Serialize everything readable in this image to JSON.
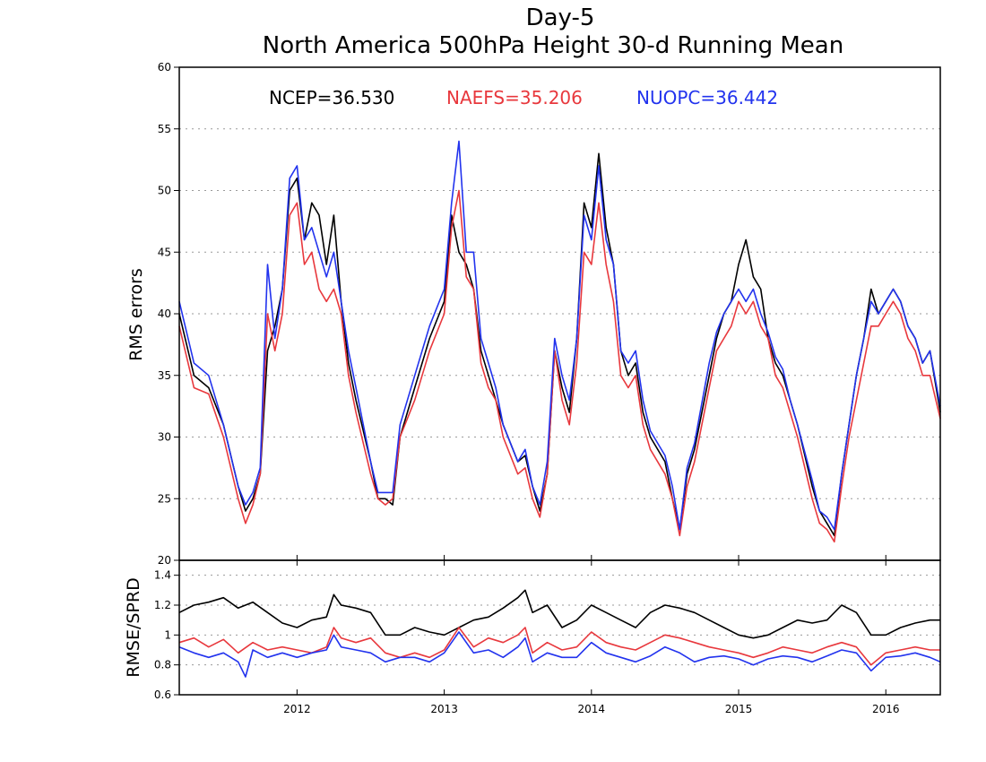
{
  "chart_data": [
    {
      "type": "line",
      "title": "Day-5",
      "subtitle": "North America 500hPa Height 30-d Running Mean",
      "ylabel": "RMS errors",
      "xlabel": "",
      "xlim": [
        2011.2,
        2016.37
      ],
      "ylim": [
        20,
        60
      ],
      "yticks": [
        20,
        25,
        30,
        35,
        40,
        45,
        50,
        55,
        60
      ],
      "ytick_labels": [
        "20",
        "25",
        "30",
        "35",
        "40",
        "45",
        "50",
        "55",
        "60"
      ],
      "grid": true,
      "legend_placement": "top",
      "series": [
        {
          "name": "NCEP",
          "label": "NCEP=36.530",
          "color": "#000000",
          "x": [
            2011.2,
            2011.3,
            2011.4,
            2011.5,
            2011.6,
            2011.65,
            2011.7,
            2011.75,
            2011.8,
            2011.85,
            2011.9,
            2011.95,
            2012.0,
            2012.05,
            2012.1,
            2012.15,
            2012.2,
            2012.25,
            2012.3,
            2012.35,
            2012.4,
            2012.5,
            2012.55,
            2012.6,
            2012.65,
            2012.7,
            2012.8,
            2012.9,
            2013.0,
            2013.05,
            2013.1,
            2013.15,
            2013.2,
            2013.25,
            2013.3,
            2013.35,
            2013.4,
            2013.5,
            2013.55,
            2013.6,
            2013.65,
            2013.7,
            2013.75,
            2013.8,
            2013.85,
            2013.9,
            2013.95,
            2014.0,
            2014.05,
            2014.1,
            2014.15,
            2014.2,
            2014.25,
            2014.3,
            2014.35,
            2014.4,
            2014.5,
            2014.55,
            2014.6,
            2014.65,
            2014.7,
            2014.8,
            2014.85,
            2014.9,
            2014.95,
            2015.0,
            2015.05,
            2015.1,
            2015.15,
            2015.2,
            2015.25,
            2015.3,
            2015.35,
            2015.4,
            2015.5,
            2015.55,
            2015.6,
            2015.65,
            2015.7,
            2015.75,
            2015.8,
            2015.85,
            2015.9,
            2015.95,
            2016.0,
            2016.05,
            2016.1,
            2016.15,
            2016.2,
            2016.25,
            2016.3,
            2016.37
          ],
          "y": [
            40,
            35,
            34,
            31,
            26,
            24,
            25,
            27,
            37,
            39,
            42,
            50,
            51,
            46,
            49,
            48,
            44,
            48,
            41,
            36,
            33,
            28,
            25,
            25,
            24.5,
            30,
            34,
            38,
            41,
            48,
            45,
            44,
            42,
            37,
            35,
            33,
            31,
            28,
            28.5,
            26,
            24,
            27,
            37,
            34,
            32,
            38,
            49,
            47,
            53,
            47,
            44,
            37,
            35,
            36,
            32,
            30,
            28,
            25,
            22.5,
            27,
            29,
            35,
            38,
            40,
            41,
            44,
            46,
            43,
            42,
            38,
            36,
            35,
            33,
            31,
            26,
            24,
            23,
            22,
            27,
            31,
            35,
            38,
            42,
            40,
            41,
            42,
            41,
            39,
            38,
            36,
            37,
            32
          ]
        },
        {
          "name": "NAEFS",
          "label": "NAEFS=35.206",
          "color": "#e8383d",
          "x": [
            2011.2,
            2011.3,
            2011.4,
            2011.5,
            2011.6,
            2011.65,
            2011.7,
            2011.75,
            2011.8,
            2011.85,
            2011.9,
            2011.95,
            2012.0,
            2012.05,
            2012.1,
            2012.15,
            2012.2,
            2012.25,
            2012.3,
            2012.35,
            2012.4,
            2012.5,
            2012.55,
            2012.6,
            2012.65,
            2012.7,
            2012.8,
            2012.9,
            2013.0,
            2013.05,
            2013.1,
            2013.15,
            2013.2,
            2013.25,
            2013.3,
            2013.35,
            2013.4,
            2013.5,
            2013.55,
            2013.6,
            2013.65,
            2013.7,
            2013.75,
            2013.8,
            2013.85,
            2013.9,
            2013.95,
            2014.0,
            2014.05,
            2014.1,
            2014.15,
            2014.2,
            2014.25,
            2014.3,
            2014.35,
            2014.4,
            2014.5,
            2014.55,
            2014.6,
            2014.65,
            2014.7,
            2014.8,
            2014.85,
            2014.9,
            2014.95,
            2015.0,
            2015.05,
            2015.1,
            2015.15,
            2015.2,
            2015.25,
            2015.3,
            2015.35,
            2015.4,
            2015.5,
            2015.55,
            2015.6,
            2015.65,
            2015.7,
            2015.75,
            2015.8,
            2015.85,
            2015.9,
            2015.95,
            2016.0,
            2016.05,
            2016.1,
            2016.15,
            2016.2,
            2016.25,
            2016.3,
            2016.37
          ],
          "y": [
            39,
            34,
            33.5,
            30,
            25,
            23,
            24.5,
            27,
            40,
            37,
            40,
            48,
            49,
            44,
            45,
            42,
            41,
            42,
            40,
            35,
            32,
            27,
            25,
            24.5,
            25,
            30,
            33,
            37,
            40,
            47,
            50,
            43,
            42,
            36,
            34,
            33,
            30,
            27,
            27.5,
            25,
            23.5,
            27,
            37,
            33,
            31,
            36,
            45,
            44,
            49,
            44,
            41,
            35,
            34,
            35,
            31,
            29,
            27,
            25,
            22,
            26,
            28,
            34,
            37,
            38,
            39,
            41,
            40,
            41,
            39,
            38,
            35,
            34,
            32,
            30,
            25,
            23,
            22.5,
            21.5,
            26,
            30,
            33,
            36,
            39,
            39,
            40,
            41,
            40,
            38,
            37,
            35,
            35,
            31.5
          ]
        },
        {
          "name": "NUOPC",
          "label": "NUOPC=36.442",
          "color": "#2233ee",
          "x": [
            2011.2,
            2011.3,
            2011.4,
            2011.5,
            2011.6,
            2011.65,
            2011.7,
            2011.75,
            2011.8,
            2011.85,
            2011.9,
            2011.95,
            2012.0,
            2012.05,
            2012.1,
            2012.15,
            2012.2,
            2012.25,
            2012.3,
            2012.35,
            2012.4,
            2012.5,
            2012.55,
            2012.6,
            2012.65,
            2012.7,
            2012.8,
            2012.9,
            2013.0,
            2013.05,
            2013.1,
            2013.15,
            2013.2,
            2013.25,
            2013.3,
            2013.35,
            2013.4,
            2013.5,
            2013.55,
            2013.6,
            2013.65,
            2013.7,
            2013.75,
            2013.8,
            2013.85,
            2013.9,
            2013.95,
            2014.0,
            2014.05,
            2014.1,
            2014.15,
            2014.2,
            2014.25,
            2014.3,
            2014.35,
            2014.4,
            2014.5,
            2014.55,
            2014.6,
            2014.65,
            2014.7,
            2014.8,
            2014.85,
            2014.9,
            2014.95,
            2015.0,
            2015.05,
            2015.1,
            2015.15,
            2015.2,
            2015.25,
            2015.3,
            2015.35,
            2015.4,
            2015.5,
            2015.55,
            2015.6,
            2015.65,
            2015.7,
            2015.75,
            2015.8,
            2015.85,
            2015.9,
            2015.95,
            2016.0,
            2016.05,
            2016.1,
            2016.15,
            2016.2,
            2016.25,
            2016.3,
            2016.37
          ],
          "y": [
            41,
            36,
            35,
            31,
            26,
            24.5,
            25.5,
            27.5,
            44,
            38,
            42,
            51,
            52,
            46,
            47,
            45,
            43,
            45,
            41,
            37,
            34,
            28,
            25.5,
            25.5,
            25.5,
            31,
            35,
            39,
            42,
            49,
            54,
            45,
            45,
            38,
            36,
            34,
            31,
            28,
            29,
            26,
            24.5,
            28,
            38,
            35,
            33,
            38,
            48,
            46,
            52,
            46,
            44,
            37,
            36,
            37,
            33,
            30.5,
            28.5,
            26,
            22.5,
            27.5,
            29.5,
            36,
            38.5,
            40,
            41,
            42,
            41,
            42,
            40,
            38.5,
            36.5,
            35.5,
            33,
            31,
            26.5,
            24,
            23.5,
            22.5,
            27,
            31,
            35,
            38,
            41,
            40,
            41,
            42,
            41,
            39,
            38,
            36,
            37,
            32.5
          ]
        }
      ]
    },
    {
      "type": "line",
      "title": "",
      "ylabel": "RMSE/SPRD",
      "xlabel": "",
      "xlim": [
        2011.2,
        2016.37
      ],
      "ylim": [
        0.6,
        1.5
      ],
      "yticks": [
        0.6,
        0.8,
        1,
        1.2,
        1.4
      ],
      "ytick_labels": [
        "0.6",
        "0.8",
        "1",
        "1.2",
        "1.4"
      ],
      "xticks": [
        2012,
        2013,
        2014,
        2015,
        2016
      ],
      "xtick_labels": [
        "2012",
        "2013",
        "2014",
        "2015",
        "2016"
      ],
      "grid": true,
      "series": [
        {
          "color": "#000000",
          "x": [
            2011.2,
            2011.3,
            2011.4,
            2011.5,
            2011.6,
            2011.7,
            2011.8,
            2011.9,
            2012.0,
            2012.1,
            2012.2,
            2012.25,
            2012.3,
            2012.4,
            2012.5,
            2012.6,
            2012.7,
            2012.8,
            2012.9,
            2013.0,
            2013.1,
            2013.2,
            2013.3,
            2013.4,
            2013.5,
            2013.55,
            2013.6,
            2013.7,
            2013.8,
            2013.9,
            2014.0,
            2014.1,
            2014.2,
            2014.3,
            2014.4,
            2014.5,
            2014.6,
            2014.7,
            2014.8,
            2014.9,
            2015.0,
            2015.1,
            2015.2,
            2015.3,
            2015.4,
            2015.5,
            2015.6,
            2015.7,
            2015.8,
            2015.9,
            2016.0,
            2016.1,
            2016.2,
            2016.3,
            2016.37
          ],
          "y": [
            1.15,
            1.2,
            1.22,
            1.25,
            1.18,
            1.22,
            1.15,
            1.08,
            1.05,
            1.1,
            1.12,
            1.27,
            1.2,
            1.18,
            1.15,
            1.0,
            1.0,
            1.05,
            1.02,
            1.0,
            1.05,
            1.1,
            1.12,
            1.18,
            1.25,
            1.3,
            1.15,
            1.2,
            1.05,
            1.1,
            1.2,
            1.15,
            1.1,
            1.05,
            1.15,
            1.2,
            1.18,
            1.15,
            1.1,
            1.05,
            1.0,
            0.98,
            1.0,
            1.05,
            1.1,
            1.08,
            1.1,
            1.2,
            1.15,
            1.0,
            1.0,
            1.05,
            1.08,
            1.1,
            1.1
          ]
        },
        {
          "color": "#e8383d",
          "x": [
            2011.2,
            2011.3,
            2011.4,
            2011.5,
            2011.6,
            2011.7,
            2011.8,
            2011.9,
            2012.0,
            2012.1,
            2012.2,
            2012.25,
            2012.3,
            2012.4,
            2012.5,
            2012.6,
            2012.7,
            2012.8,
            2012.9,
            2013.0,
            2013.1,
            2013.2,
            2013.3,
            2013.4,
            2013.5,
            2013.55,
            2013.6,
            2013.7,
            2013.8,
            2013.9,
            2014.0,
            2014.1,
            2014.2,
            2014.3,
            2014.4,
            2014.5,
            2014.6,
            2014.7,
            2014.8,
            2014.9,
            2015.0,
            2015.1,
            2015.2,
            2015.3,
            2015.4,
            2015.5,
            2015.6,
            2015.7,
            2015.8,
            2015.9,
            2016.0,
            2016.1,
            2016.2,
            2016.3,
            2016.37
          ],
          "y": [
            0.95,
            0.98,
            0.92,
            0.97,
            0.88,
            0.95,
            0.9,
            0.92,
            0.9,
            0.88,
            0.92,
            1.05,
            0.98,
            0.95,
            0.98,
            0.88,
            0.85,
            0.88,
            0.85,
            0.9,
            1.05,
            0.92,
            0.98,
            0.95,
            1.0,
            1.05,
            0.88,
            0.95,
            0.9,
            0.92,
            1.02,
            0.95,
            0.92,
            0.9,
            0.95,
            1.0,
            0.98,
            0.95,
            0.92,
            0.9,
            0.88,
            0.85,
            0.88,
            0.92,
            0.9,
            0.88,
            0.92,
            0.95,
            0.92,
            0.8,
            0.88,
            0.9,
            0.92,
            0.9,
            0.9
          ]
        },
        {
          "color": "#2233ee",
          "x": [
            2011.2,
            2011.3,
            2011.4,
            2011.5,
            2011.6,
            2011.65,
            2011.7,
            2011.8,
            2011.9,
            2012.0,
            2012.1,
            2012.2,
            2012.25,
            2012.3,
            2012.4,
            2012.5,
            2012.6,
            2012.7,
            2012.8,
            2012.9,
            2013.0,
            2013.1,
            2013.2,
            2013.3,
            2013.4,
            2013.5,
            2013.55,
            2013.6,
            2013.7,
            2013.8,
            2013.9,
            2014.0,
            2014.1,
            2014.2,
            2014.3,
            2014.4,
            2014.5,
            2014.6,
            2014.7,
            2014.8,
            2014.9,
            2015.0,
            2015.1,
            2015.2,
            2015.3,
            2015.4,
            2015.5,
            2015.6,
            2015.7,
            2015.8,
            2015.9,
            2016.0,
            2016.1,
            2016.2,
            2016.3,
            2016.37
          ],
          "y": [
            0.92,
            0.88,
            0.85,
            0.88,
            0.82,
            0.72,
            0.9,
            0.85,
            0.88,
            0.85,
            0.88,
            0.9,
            1.0,
            0.92,
            0.9,
            0.88,
            0.82,
            0.85,
            0.85,
            0.82,
            0.88,
            1.02,
            0.88,
            0.9,
            0.85,
            0.92,
            0.98,
            0.82,
            0.88,
            0.85,
            0.85,
            0.95,
            0.88,
            0.85,
            0.82,
            0.86,
            0.92,
            0.88,
            0.82,
            0.85,
            0.86,
            0.84,
            0.8,
            0.84,
            0.86,
            0.85,
            0.82,
            0.86,
            0.9,
            0.88,
            0.76,
            0.85,
            0.86,
            0.88,
            0.85,
            0.82
          ]
        }
      ]
    }
  ]
}
